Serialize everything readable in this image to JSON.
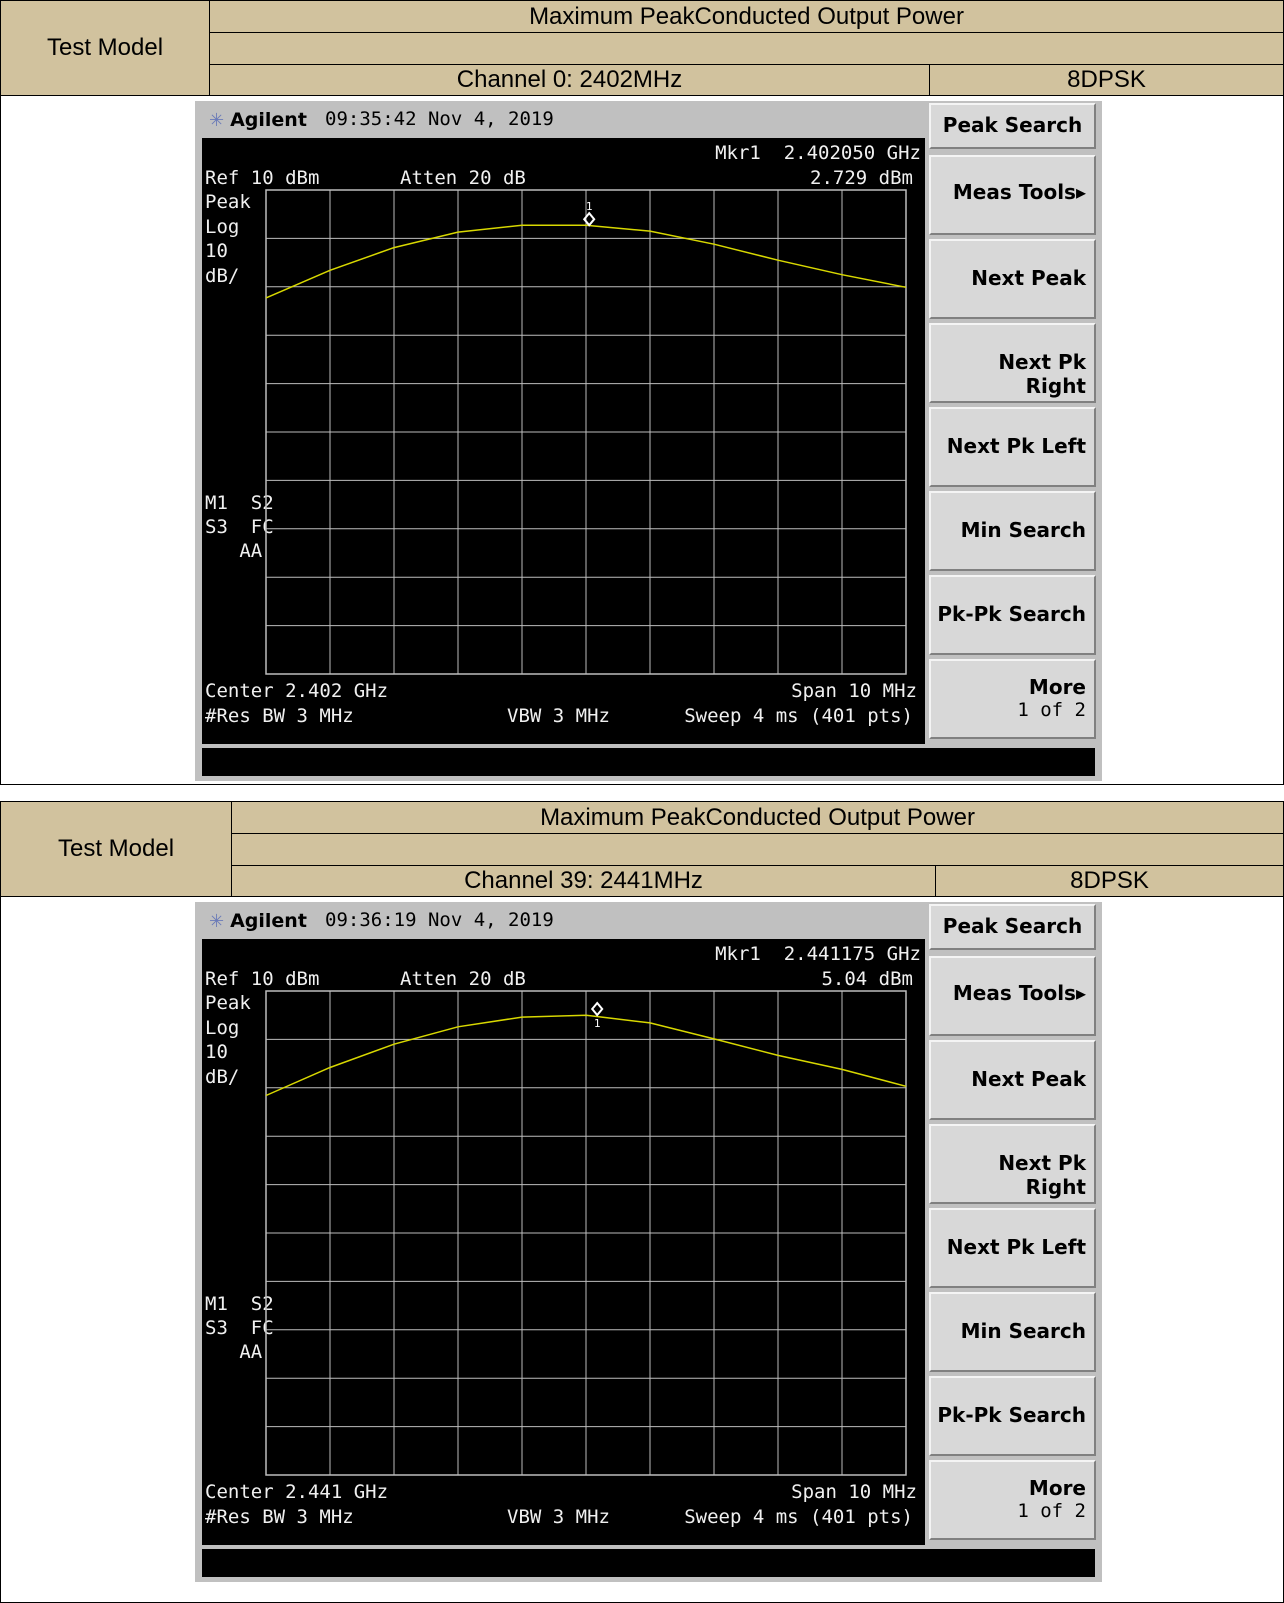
{
  "panels": [
    {
      "header": {
        "test_model_label": "Test Model",
        "title": "Maximum PeakConducted Output Power",
        "channel": "Channel 0: 2402MHz",
        "modulation": "8DPSK"
      },
      "analyzer": {
        "brand": "Agilent",
        "timestamp": "09:35:42  Nov 4, 2019",
        "marker_label": "Mkr1  2.402050 GHz",
        "marker_value": "2.729 dBm",
        "ref_level": "Ref 10 dBm",
        "atten": "Atten 20 dB",
        "left_labels": [
          "Peak",
          "Log",
          "10",
          "dB/"
        ],
        "status_labels": [
          "M1  S2",
          "S3  FC",
          "   AA"
        ],
        "center": "Center 2.402 GHz",
        "span": "Span 10 MHz",
        "res_bw": "#Res BW 3 MHz",
        "vbw": "VBW 3 MHz",
        "sweep": "Sweep 4 ms (401 pts)",
        "marker_number": "1",
        "softkeys": [
          "Peak Search",
          "Meas Tools▸",
          "Next Peak",
          "Next Pk Right",
          "Next Pk Left",
          "Min Search",
          "Pk-Pk Search",
          "More",
          "1 of 2"
        ]
      }
    },
    {
      "header": {
        "test_model_label": "Test Model",
        "title": "Maximum PeakConducted Output Power",
        "channel": "Channel 39: 2441MHz",
        "modulation": "8DPSK"
      },
      "analyzer": {
        "brand": "Agilent",
        "timestamp": "09:36:19  Nov 4, 2019",
        "marker_label": "Mkr1  2.441175 GHz",
        "marker_value": "5.04 dBm",
        "ref_level": "Ref 10 dBm",
        "atten": "Atten 20 dB",
        "left_labels": [
          "Peak",
          "Log",
          "10",
          "dB/"
        ],
        "status_labels": [
          "M1  S2",
          "S3  FC",
          "   AA"
        ],
        "center": "Center 2.441 GHz",
        "span": "Span 10 MHz",
        "res_bw": "#Res BW 3 MHz",
        "vbw": "VBW 3 MHz",
        "sweep": "Sweep 4 ms (401 pts)",
        "marker_number": "1",
        "softkeys": [
          "Peak Search",
          "Meas Tools▸",
          "Next Peak",
          "Next Pk Right",
          "Next Pk Left",
          "Min Search",
          "Pk-Pk Search",
          "More",
          "1 of 2"
        ]
      }
    }
  ],
  "colors": {
    "header_bg": "#d1c29e",
    "trace": "#d8d800",
    "grid": "#bdbdbd",
    "screen_bg": "#000000",
    "softkey_bg": "#d8d8d8"
  },
  "chart_data": [
    {
      "type": "line",
      "xlabel": "",
      "ylabel": "",
      "x_unit": "MHz",
      "y_unit": "dBm",
      "xlim": [
        2397,
        2407
      ],
      "ylim": [
        -90,
        10
      ],
      "y_div": 10,
      "grid": true,
      "series": [
        {
          "x": [
            2397,
            2398,
            2399,
            2400,
            2401,
            2402,
            2403,
            2404,
            2405,
            2406,
            2407
          ],
          "y": [
            -12.3,
            -6.6,
            -1.9,
            1.3,
            2.7,
            2.7,
            1.5,
            -1.2,
            -4.5,
            -7.5,
            -10.1
          ]
        }
      ],
      "marker": {
        "x": 2402.05,
        "y": 2.729
      }
    },
    {
      "type": "line",
      "xlabel": "",
      "ylabel": "",
      "x_unit": "MHz",
      "y_unit": "dBm",
      "xlim": [
        2436,
        2446
      ],
      "ylim": [
        -90,
        10
      ],
      "y_div": 10,
      "grid": true,
      "series": [
        {
          "x": [
            2436,
            2437,
            2438,
            2439,
            2440,
            2441,
            2442,
            2443,
            2444,
            2445,
            2446
          ],
          "y": [
            -11.6,
            -5.8,
            -1.0,
            2.6,
            4.6,
            5.0,
            3.4,
            0.1,
            -3.3,
            -6.2,
            -9.7
          ]
        }
      ],
      "marker": {
        "x": 2441.175,
        "y": 5.04
      }
    }
  ]
}
